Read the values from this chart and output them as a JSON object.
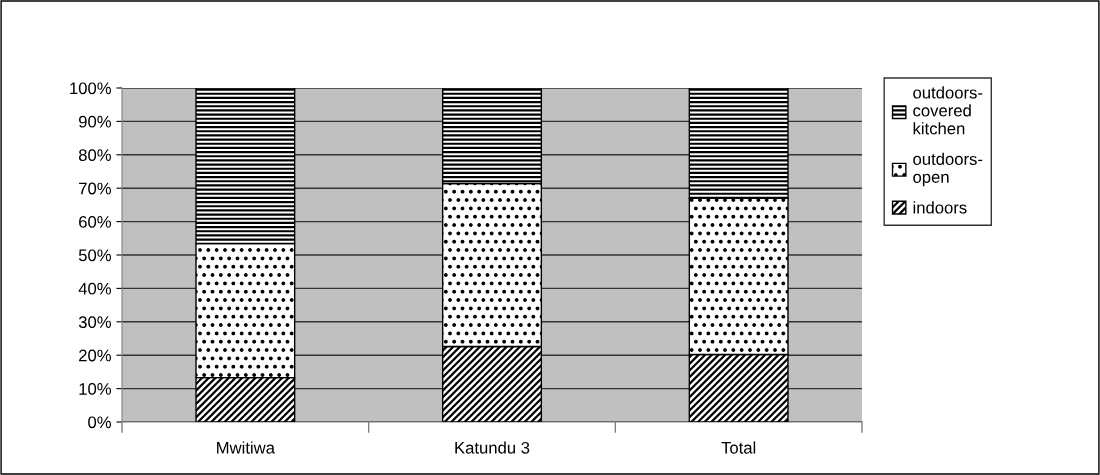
{
  "chart_data": {
    "type": "bar",
    "stacked": true,
    "categories": [
      "Mwitiwa",
      "Katundu 3",
      "Total"
    ],
    "series": [
      {
        "name": "indoors",
        "color": "#000000",
        "values": [
          13.3,
          22.6,
          20.2
        ]
      },
      {
        "name": "outdoors-\nopen",
        "color": "#000000",
        "values": [
          40.1,
          48.8,
          46.8
        ]
      },
      {
        "name": "outdoors-\ncovered\nkitchen",
        "color": "#000000",
        "values": [
          46.6,
          28.6,
          33.0
        ]
      }
    ],
    "ylim": [
      0,
      100
    ],
    "yticks": [
      {
        "value": 0,
        "label": "0%"
      },
      {
        "value": 10,
        "label": "10%"
      },
      {
        "value": 20,
        "label": "20%"
      },
      {
        "value": 30,
        "label": "30%"
      },
      {
        "value": 40,
        "label": "40%"
      },
      {
        "value": 50,
        "label": "50%"
      },
      {
        "value": 60,
        "label": "60%"
      },
      {
        "value": 70,
        "label": "70%"
      },
      {
        "value": 80,
        "label": "80%"
      },
      {
        "value": 90,
        "label": "90%"
      },
      {
        "value": 100,
        "label": "100%"
      }
    ],
    "grid": "y",
    "legend": "right"
  }
}
